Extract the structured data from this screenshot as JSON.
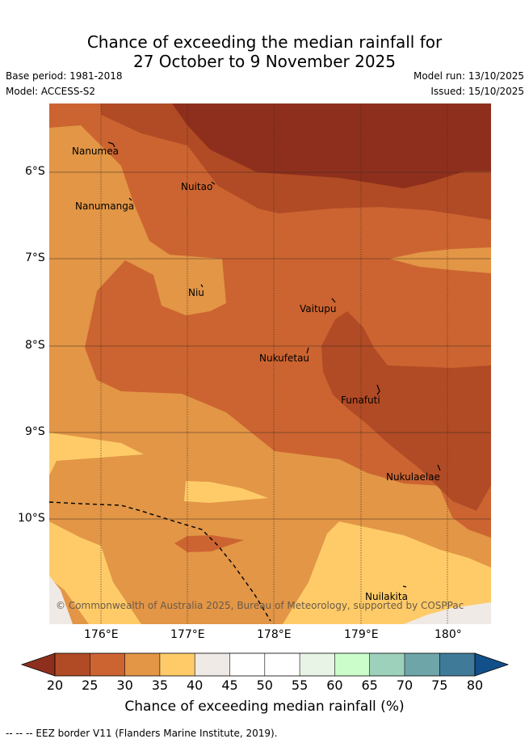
{
  "title": {
    "line1": "Chance of exceeding the median rainfall for",
    "line2": "27 October to 9 November 2025"
  },
  "meta": {
    "base_period": "Base period: 1981-2018",
    "model": "Model: ACCESS-S2",
    "model_run": "Model run: 13/10/2025",
    "issued": "Issued: 15/10/2025"
  },
  "map": {
    "lat_labels": [
      "6°S",
      "7°S",
      "8°S",
      "9°S",
      "10°S"
    ],
    "lon_labels": [
      "176°E",
      "177°E",
      "178°E",
      "179°E",
      "180°"
    ],
    "places": [
      {
        "name": "Nanumea"
      },
      {
        "name": "Nuitao"
      },
      {
        "name": "Nanumanga"
      },
      {
        "name": "Niu"
      },
      {
        "name": "Vaitupu"
      },
      {
        "name": "Nukufetau"
      },
      {
        "name": "Funafuti"
      },
      {
        "name": "Nukulaelae"
      },
      {
        "name": "Nuilakita"
      }
    ],
    "copyright": "© Commonwealth of Australia 2025, Bureau of Meteorology, supported by COSPPac"
  },
  "colorbar": {
    "ticks": [
      "20",
      "25",
      "30",
      "35",
      "40",
      "45",
      "50",
      "55",
      "60",
      "65",
      "70",
      "75",
      "80"
    ],
    "colors": [
      "#8e2f1d",
      "#b14b25",
      "#cc6431",
      "#e29646",
      "#fecb68",
      "#efeae5",
      "#ffffff",
      "#ffffff",
      "#e8f4e6",
      "#cbfdca",
      "#9dd1bc",
      "#6ea5a8",
      "#3f7b99",
      "#12508b"
    ],
    "label": "Chance of exceeding median rainfall (%)"
  },
  "footnote": "--  --  -- EEZ border V11 (Flanders Marine Institute, 2019)."
}
